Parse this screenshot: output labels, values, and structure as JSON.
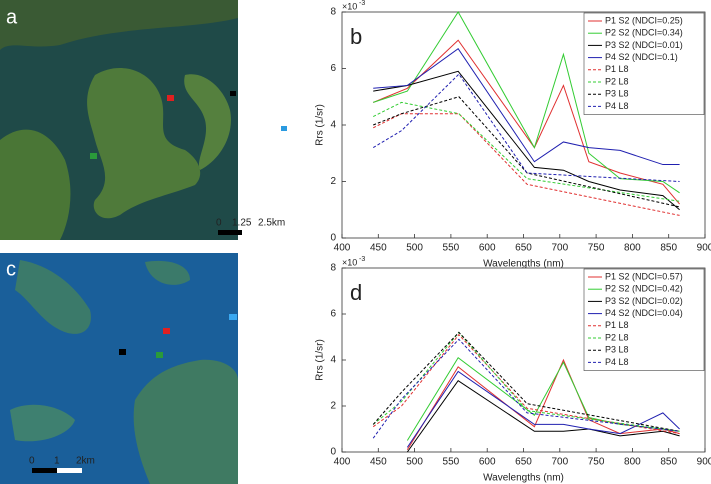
{
  "panels": {
    "a": {
      "label": "a",
      "scale": [
        "0",
        "1.25",
        "2.5km"
      ]
    },
    "c": {
      "label": "c",
      "scale": [
        "0",
        "1",
        "2km"
      ]
    }
  },
  "chart_data": [
    {
      "type": "line",
      "label": "b",
      "x_label": "Wavelengths (nm)",
      "y_label": "Rrs (1/sr)",
      "y_multiplier": {
        "base": "×10",
        "exponent": "-3"
      },
      "xlim": [
        400,
        900
      ],
      "xticks": [
        400,
        450,
        500,
        550,
        600,
        650,
        700,
        750,
        800,
        850,
        900
      ],
      "ylim": [
        0,
        8
      ],
      "yticks": [
        0,
        2,
        4,
        6,
        8
      ],
      "legend": "upper right",
      "series": [
        {
          "name": "P1 S2 (NDCI=0.25)",
          "color": "#e03030",
          "linestyle": "solid",
          "x": [
            443,
            490,
            560,
            665,
            705,
            740,
            783,
            842,
            865
          ],
          "values": [
            4.8,
            5.3,
            7.0,
            3.2,
            5.4,
            2.7,
            2.3,
            1.9,
            1.2
          ]
        },
        {
          "name": "P2 S2 (NDCI=0.34)",
          "color": "#33cc33",
          "linestyle": "solid",
          "x": [
            443,
            490,
            560,
            665,
            705,
            740,
            783,
            842,
            865
          ],
          "values": [
            4.8,
            5.2,
            8.0,
            3.2,
            6.5,
            3.0,
            2.1,
            2.0,
            1.6
          ]
        },
        {
          "name": "P3 S2 (NDCI=0.01)",
          "color": "#000000",
          "linestyle": "solid",
          "x": [
            443,
            490,
            560,
            665,
            705,
            740,
            783,
            842,
            865
          ],
          "values": [
            5.2,
            5.4,
            5.9,
            2.5,
            2.4,
            2.0,
            1.7,
            1.5,
            1.0
          ]
        },
        {
          "name": "P4 S2 (NDCI=0.1)",
          "color": "#2020b0",
          "linestyle": "solid",
          "x": [
            443,
            490,
            560,
            665,
            705,
            740,
            783,
            842,
            865
          ],
          "values": [
            5.3,
            5.4,
            6.7,
            2.7,
            3.4,
            3.2,
            3.1,
            2.6,
            2.6
          ]
        },
        {
          "name": "P1 L8",
          "color": "#e03030",
          "linestyle": "dashed",
          "x": [
            443,
            482,
            561,
            655,
            865
          ],
          "values": [
            3.9,
            4.4,
            4.4,
            1.9,
            0.8
          ]
        },
        {
          "name": "P2 L8",
          "color": "#33cc33",
          "linestyle": "dashed",
          "x": [
            443,
            482,
            561,
            655,
            865
          ],
          "values": [
            4.3,
            4.8,
            4.4,
            2.1,
            1.3
          ]
        },
        {
          "name": "P3 L8",
          "color": "#000000",
          "linestyle": "dashed",
          "x": [
            443,
            482,
            561,
            655,
            865
          ],
          "values": [
            4.0,
            4.4,
            5.0,
            2.3,
            1.1
          ]
        },
        {
          "name": "P4 L8",
          "color": "#2020b0",
          "linestyle": "dashed",
          "x": [
            443,
            482,
            561,
            655,
            865
          ],
          "values": [
            3.2,
            3.8,
            5.8,
            2.3,
            2.0
          ]
        }
      ]
    },
    {
      "type": "line",
      "label": "d",
      "x_label": "Wavelengths (nm)",
      "y_label": "Rrs (1/sr)",
      "y_multiplier": {
        "base": "×10",
        "exponent": "-3"
      },
      "xlim": [
        400,
        900
      ],
      "xticks": [
        400,
        450,
        500,
        550,
        600,
        650,
        700,
        750,
        800,
        850,
        900
      ],
      "ylim": [
        0,
        8
      ],
      "yticks": [
        0,
        2,
        4,
        6,
        8
      ],
      "legend": "upper right",
      "series": [
        {
          "name": "P1 S2 (NDCI=0.57)",
          "color": "#e03030",
          "linestyle": "solid",
          "x": [
            490,
            560,
            665,
            705,
            740,
            783,
            842,
            865
          ],
          "values": [
            0.1,
            3.7,
            1.1,
            4.0,
            1.4,
            0.8,
            1.0,
            0.8
          ]
        },
        {
          "name": "P2 S2 (NDCI=0.42)",
          "color": "#33cc33",
          "linestyle": "solid",
          "x": [
            490,
            560,
            665,
            705,
            740,
            783,
            842,
            865
          ],
          "values": [
            0.5,
            4.1,
            1.6,
            3.9,
            1.5,
            1.2,
            1.0,
            0.9
          ]
        },
        {
          "name": "P3 S2 (NDCI=0.02)",
          "color": "#000000",
          "linestyle": "solid",
          "x": [
            490,
            560,
            665,
            705,
            740,
            783,
            842,
            865
          ],
          "values": [
            0.0,
            3.1,
            0.9,
            0.9,
            1.0,
            0.7,
            0.9,
            0.7
          ]
        },
        {
          "name": "P4 S2 (NDCI=0.04)",
          "color": "#2020b0",
          "linestyle": "solid",
          "x": [
            490,
            560,
            665,
            705,
            740,
            783,
            842,
            865
          ],
          "values": [
            0.2,
            3.5,
            1.2,
            1.2,
            1.0,
            0.8,
            1.7,
            1.0
          ]
        },
        {
          "name": "P1 L8",
          "color": "#e03030",
          "linestyle": "dashed",
          "x": [
            443,
            482,
            561,
            655,
            865
          ],
          "values": [
            1.1,
            2.0,
            5.1,
            1.9,
            0.8
          ]
        },
        {
          "name": "P2 L8",
          "color": "#33cc33",
          "linestyle": "dashed",
          "x": [
            443,
            482,
            561,
            655,
            865
          ],
          "values": [
            1.2,
            2.2,
            5.2,
            1.8,
            0.9
          ]
        },
        {
          "name": "P3 L8",
          "color": "#000000",
          "linestyle": "dashed",
          "x": [
            443,
            482,
            561,
            655,
            865
          ],
          "values": [
            1.2,
            2.6,
            5.2,
            2.1,
            0.9
          ]
        },
        {
          "name": "P4 L8",
          "color": "#2020b0",
          "linestyle": "dashed",
          "x": [
            443,
            482,
            561,
            655,
            865
          ],
          "values": [
            0.6,
            2.3,
            4.9,
            1.7,
            0.9
          ]
        }
      ]
    }
  ]
}
